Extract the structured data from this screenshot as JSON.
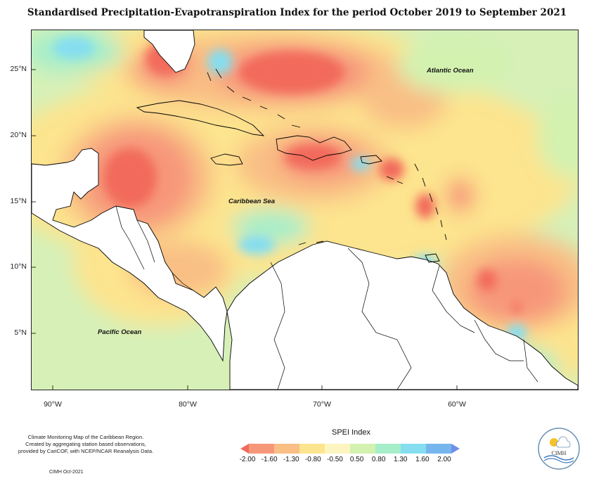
{
  "title": "Standardised Precipitation-Evapotranspiration Index for the period October 2019 to September 2021",
  "map": {
    "labels": {
      "atlantic": "Atlantic Ocean",
      "caribbean": "Caribbean Sea",
      "pacific": "Pacific Ocean"
    },
    "y_ticks": [
      "25°N",
      "20°N",
      "15°N",
      "10°N",
      "5°N"
    ],
    "x_ticks": [
      "90°W",
      "80°W",
      "70°W",
      "60°W"
    ],
    "extent": {
      "lon": [
        -92.3,
        -50.8
      ],
      "lat": [
        1.6,
        28.0
      ]
    }
  },
  "legend": {
    "title": "SPEI Index",
    "ticks": [
      "-2.00",
      "-1.60",
      "-1.30",
      "-0.80",
      "-0.50",
      "0.50",
      "0.80",
      "1.30",
      "1.60",
      "2.00"
    ],
    "colors": [
      "#f26a5b",
      "#f7977a",
      "#f9bf85",
      "#fde48e",
      "#fcf5c0",
      "#d3f2b0",
      "#a6eeca",
      "#85def0",
      "#76b6ee",
      "#6f8ee8"
    ]
  },
  "footer": {
    "line1": "Climate Monitoring Map of the Caribbean Region.",
    "line2": "Created by aggregating station based observations,",
    "line3": "provided by CariCOF, with NCEP/NCAR Reanalysis Data.",
    "credit": "CIMH Oct-2021"
  },
  "logo": {
    "text": "CIMH"
  }
}
